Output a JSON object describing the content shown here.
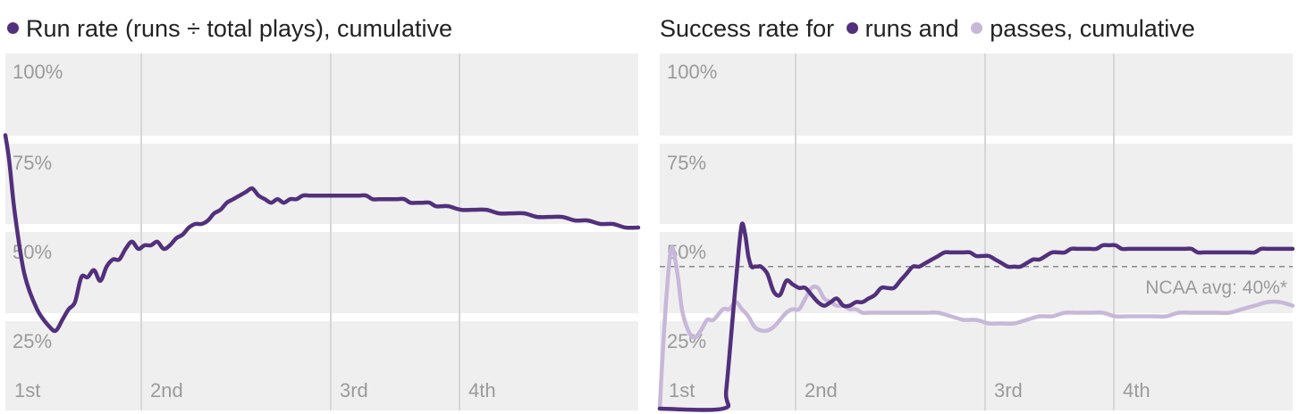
{
  "colors": {
    "run": "#52307c",
    "pass": "#c7b8d9",
    "panel": "#efefef",
    "divider": "#d6d6d6",
    "refline": "#8a8a8a"
  },
  "chart_data": [
    {
      "type": "line",
      "title": "Run rate (runs ÷ total plays), cumulative",
      "xlabel": "",
      "ylabel": "",
      "ylim": [
        0,
        100
      ],
      "y_ticks": [
        "25%",
        "50%",
        "75%",
        "100%"
      ],
      "quarters": [
        "1st",
        "2nd",
        "3rd",
        "4th"
      ],
      "xlim": [
        0,
        100
      ],
      "series": [
        {
          "key": "run",
          "x": [
            0,
            0.6,
            1.5,
            3,
            5,
            7,
            8,
            9,
            10,
            11,
            12,
            13,
            14,
            15,
            16,
            17,
            18,
            19,
            20,
            21,
            22,
            23,
            24,
            25,
            26,
            27,
            28,
            29,
            30,
            31,
            32,
            33,
            34,
            35,
            36,
            37,
            38,
            39,
            40,
            41,
            42,
            43,
            44,
            45,
            46,
            47,
            48,
            49,
            50,
            51,
            52,
            53,
            54,
            55,
            56,
            57,
            58,
            59,
            60,
            61,
            62,
            63,
            64,
            65,
            66,
            67,
            68,
            69,
            70,
            72,
            74,
            76,
            78,
            80,
            82,
            84,
            86,
            88,
            90,
            92,
            94,
            96,
            98,
            100
          ],
          "y": [
            77,
            70,
            55,
            38,
            28,
            23,
            22,
            25,
            28,
            30,
            37,
            37,
            39,
            36,
            40,
            42,
            42,
            45,
            47,
            45,
            46,
            46,
            47,
            45,
            46,
            48,
            49,
            51,
            52,
            52,
            53,
            55,
            56,
            58,
            59,
            60,
            61,
            62,
            60,
            59,
            58,
            59,
            58,
            59,
            59,
            60,
            60,
            60,
            60,
            60,
            60,
            60,
            60,
            60,
            60,
            60,
            59,
            59,
            59,
            59,
            59,
            59,
            58,
            58,
            58,
            58,
            57,
            57,
            57,
            56,
            56,
            56,
            55,
            55,
            55,
            54,
            54,
            54,
            53,
            53,
            52,
            52,
            51,
            51
          ]
        }
      ]
    },
    {
      "type": "line",
      "title_parts": [
        "Success rate for",
        "runs and",
        "passes, cumulative"
      ],
      "xlabel": "",
      "ylabel": "",
      "ylim": [
        0,
        100
      ],
      "y_ticks": [
        "25%",
        "50%",
        "75%",
        "100%"
      ],
      "quarters": [
        "1st",
        "2nd",
        "3rd",
        "4th"
      ],
      "xlim": [
        0,
        100
      ],
      "reference_line": {
        "y": 40,
        "label": "NCAA avg: 40%*"
      },
      "series": [
        {
          "key": "run",
          "x": [
            0,
            10,
            10.5,
            11.5,
            12.5,
            13,
            13.5,
            14,
            14.5,
            15,
            15.5,
            16,
            17,
            18,
            19,
            20,
            21,
            22,
            23,
            24,
            25,
            26,
            27,
            28,
            29,
            30,
            31,
            32,
            33,
            34,
            35,
            36,
            37,
            38,
            39,
            40,
            41,
            42,
            43,
            44,
            45,
            46,
            47,
            48,
            49,
            50,
            51,
            52,
            53,
            54,
            55,
            56,
            57,
            58,
            59,
            60,
            61,
            62,
            63,
            64,
            65,
            66,
            67,
            68,
            69,
            70,
            71,
            72,
            73,
            74,
            75,
            76,
            77,
            78,
            79,
            80,
            81,
            82,
            83,
            84,
            85,
            86,
            87,
            88,
            89,
            90,
            91,
            92,
            93,
            94,
            95,
            96,
            97,
            98,
            99,
            100
          ],
          "y": [
            0,
            0,
            5,
            25,
            45,
            52,
            49,
            43,
            40,
            40,
            40,
            40,
            38,
            33,
            32,
            36,
            35,
            34,
            34,
            32,
            30,
            29,
            30,
            31,
            29,
            29,
            30,
            30,
            31,
            32,
            34,
            34,
            34,
            36,
            38,
            40,
            40,
            41,
            42,
            43,
            44,
            44,
            44,
            44,
            44,
            43,
            43,
            43,
            42,
            41,
            40,
            40,
            40,
            41,
            42,
            42,
            43,
            44,
            44,
            44,
            45,
            45,
            45,
            45,
            45,
            46,
            46,
            46,
            45,
            45,
            45,
            45,
            45,
            45,
            45,
            45,
            45,
            45,
            45,
            45,
            44,
            44,
            44,
            44,
            44,
            44,
            44,
            44,
            44,
            44,
            45,
            45,
            45,
            45,
            45,
            45
          ],
          "note": "x positions of runs series roughly follow shared quarter scale"
        },
        {
          "key": "pass",
          "x": [
            0,
            0.8,
            1.8,
            2.8,
            3.5,
            4.5,
            5.5,
            6.5,
            7.5,
            8.5,
            10,
            11,
            12,
            13,
            14,
            15,
            16,
            17,
            18,
            19,
            20,
            21,
            22,
            23,
            24,
            25,
            26,
            27,
            28,
            29,
            30,
            31,
            32,
            33,
            34,
            35,
            36,
            37,
            38,
            39,
            40,
            42,
            44,
            46,
            48,
            50,
            52,
            54,
            56,
            58,
            60,
            62,
            64,
            66,
            68,
            70,
            72,
            74,
            76,
            78,
            80,
            82,
            84,
            86,
            88,
            90,
            92,
            94,
            96,
            98,
            100
          ],
          "y": [
            0,
            25,
            45,
            38,
            28,
            22,
            20,
            22,
            25,
            25,
            28,
            28,
            30,
            28,
            26,
            23,
            22,
            22,
            23,
            25,
            27,
            28,
            28,
            31,
            34,
            34,
            31,
            30,
            29,
            29,
            28,
            28,
            27,
            27,
            27,
            27,
            27,
            27,
            27,
            27,
            27,
            27,
            27,
            26,
            25,
            25,
            24,
            24,
            24,
            25,
            26,
            26,
            27,
            27,
            27,
            27,
            26,
            26,
            26,
            26,
            26,
            27,
            27,
            27,
            27,
            27,
            28,
            29,
            30,
            30,
            29
          ],
          "note": ""
        }
      ]
    }
  ]
}
